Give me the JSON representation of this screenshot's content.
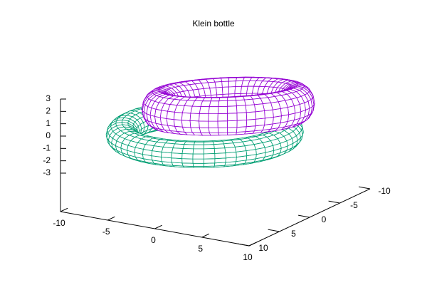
{
  "chart_data": {
    "type": "surface3d",
    "title": "Klein bottle",
    "xlim": [
      -10,
      10
    ],
    "ylim": [
      -10,
      10
    ],
    "zlim": [
      -3,
      3
    ],
    "xticks": [
      -10,
      -5,
      0,
      5,
      10
    ],
    "yticks": [
      -10,
      -5,
      0,
      5,
      10
    ],
    "zticks": [
      -3,
      -2,
      -1,
      0,
      1,
      2,
      3
    ],
    "series": [
      {
        "color": "#009e73"
      },
      {
        "color": "#9400d3"
      }
    ]
  }
}
